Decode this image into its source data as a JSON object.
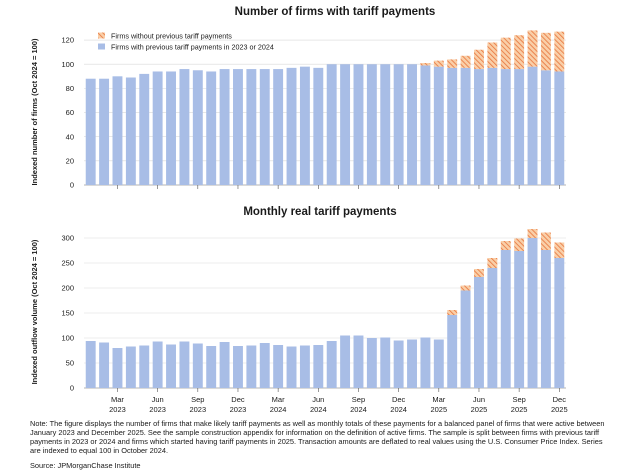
{
  "colors": {
    "existing": "#a8bde6",
    "new_fill": "#f9cfa8",
    "new_hatch": "#e8733a",
    "grid": "#d9d9d9"
  },
  "chart_data": [
    {
      "type": "bar",
      "stacked": true,
      "title": "Number of firms with tariff payments",
      "ylabel": "Indexed number of firms (Oct 2024 = 100)",
      "xlabel": "",
      "ylim": [
        0,
        130
      ],
      "yticks": [
        0,
        20,
        40,
        60,
        80,
        100,
        120
      ],
      "grid": true,
      "legend_position": "top-left",
      "categories": [
        "Jan 2023",
        "Feb 2023",
        "Mar 2023",
        "Apr 2023",
        "May 2023",
        "Jun 2023",
        "Jul 2023",
        "Aug 2023",
        "Sep 2023",
        "Oct 2023",
        "Nov 2023",
        "Dec 2023",
        "Jan 2024",
        "Feb 2024",
        "Mar 2024",
        "Apr 2024",
        "May 2024",
        "Jun 2024",
        "Jul 2024",
        "Aug 2024",
        "Sep 2024",
        "Oct 2024",
        "Nov 2024",
        "Dec 2024",
        "Jan 2025",
        "Feb 2025",
        "Mar 2025",
        "Apr 2025",
        "May 2025",
        "Jun 2025",
        "Jul 2025",
        "Aug 2025",
        "Sep 2025",
        "Oct 2025",
        "Nov 2025",
        "Dec 2025"
      ],
      "series": [
        {
          "name": "Firms with previous tariff payments in 2023 or 2024",
          "key": "existing",
          "values": [
            88,
            88,
            90,
            89,
            92,
            94,
            94,
            96,
            95,
            94,
            96,
            96,
            96,
            96,
            96,
            97,
            98,
            97,
            100,
            100,
            100,
            100,
            100,
            100,
            100,
            99,
            98,
            97,
            97,
            96,
            97,
            96,
            96,
            98,
            95,
            94
          ]
        },
        {
          "name": "Firms without previous tariff payments",
          "key": "new",
          "values": [
            0,
            0,
            0,
            0,
            0,
            0,
            0,
            0,
            0,
            0,
            0,
            0,
            0,
            0,
            0,
            0,
            0,
            0,
            0,
            0,
            0,
            0,
            0,
            0,
            0,
            2,
            5,
            7,
            10,
            16,
            21,
            26,
            28,
            30,
            31,
            33
          ]
        }
      ],
      "xticks": [
        {
          "month": "Mar",
          "year": "2023"
        },
        {
          "month": "Jun",
          "year": "2023"
        },
        {
          "month": "Sep",
          "year": "2023"
        },
        {
          "month": "Dec",
          "year": "2023"
        },
        {
          "month": "Mar",
          "year": "2024"
        },
        {
          "month": "Jun",
          "year": "2024"
        },
        {
          "month": "Sep",
          "year": "2024"
        },
        {
          "month": "Dec",
          "year": "2024"
        },
        {
          "month": "Mar",
          "year": "2025"
        },
        {
          "month": "Jun",
          "year": "2025"
        },
        {
          "month": "Sep",
          "year": "2025"
        },
        {
          "month": "Dec",
          "year": "2025"
        }
      ],
      "xtick_labels_shown": false
    },
    {
      "type": "bar",
      "stacked": true,
      "title": "Monthly real tariff payments",
      "ylabel": "Indexed outflow volume (Oct 2024 = 100)",
      "xlabel": "",
      "ylim": [
        0,
        320
      ],
      "yticks": [
        0,
        50,
        100,
        150,
        200,
        250,
        300
      ],
      "grid": true,
      "legend_position": "none",
      "categories": [
        "Jan 2023",
        "Feb 2023",
        "Mar 2023",
        "Apr 2023",
        "May 2023",
        "Jun 2023",
        "Jul 2023",
        "Aug 2023",
        "Sep 2023",
        "Oct 2023",
        "Nov 2023",
        "Dec 2023",
        "Jan 2024",
        "Feb 2024",
        "Mar 2024",
        "Apr 2024",
        "May 2024",
        "Jun 2024",
        "Jul 2024",
        "Aug 2024",
        "Sep 2024",
        "Oct 2024",
        "Nov 2024",
        "Dec 2024",
        "Jan 2025",
        "Feb 2025",
        "Mar 2025",
        "Apr 2025",
        "May 2025",
        "Jun 2025",
        "Jul 2025",
        "Aug 2025",
        "Sep 2025",
        "Oct 2025",
        "Nov 2025",
        "Dec 2025"
      ],
      "series": [
        {
          "name": "Firms with previous tariff payments in 2023 or 2024",
          "key": "existing",
          "values": [
            94,
            91,
            80,
            83,
            85,
            93,
            87,
            93,
            89,
            84,
            92,
            84,
            85,
            90,
            86,
            83,
            85,
            86,
            94,
            105,
            105,
            100,
            101,
            95,
            97,
            101,
            97,
            146,
            195,
            222,
            240,
            276,
            274,
            300,
            276,
            260
          ]
        },
        {
          "name": "Firms without previous tariff payments",
          "key": "new",
          "values": [
            0,
            0,
            0,
            0,
            0,
            0,
            0,
            0,
            0,
            0,
            0,
            0,
            0,
            0,
            0,
            0,
            0,
            0,
            0,
            0,
            0,
            0,
            0,
            0,
            0,
            0,
            0,
            10,
            10,
            16,
            20,
            18,
            25,
            18,
            35,
            31
          ]
        }
      ],
      "xticks": [
        {
          "month": "Mar",
          "year": "2023"
        },
        {
          "month": "Jun",
          "year": "2023"
        },
        {
          "month": "Sep",
          "year": "2023"
        },
        {
          "month": "Dec",
          "year": "2023"
        },
        {
          "month": "Mar",
          "year": "2024"
        },
        {
          "month": "Jun",
          "year": "2024"
        },
        {
          "month": "Sep",
          "year": "2024"
        },
        {
          "month": "Dec",
          "year": "2024"
        },
        {
          "month": "Mar",
          "year": "2025"
        },
        {
          "month": "Jun",
          "year": "2025"
        },
        {
          "month": "Sep",
          "year": "2025"
        },
        {
          "month": "Dec",
          "year": "2025"
        }
      ],
      "xtick_labels_shown": true
    }
  ],
  "legend": {
    "new_label": "Firms without previous tariff payments",
    "existing_label": "Firms with previous tariff payments in 2023 or 2024"
  },
  "note": "Note: The figure displays the number of firms that make likely tariff payments as well as monthly totals of these payments for a balanced panel of firms that were active between January 2023 and December 2025. See the sample construction appendix for information on the definition of active firms. The sample is split between firms with previous tariff payments in 2023 or 2024 and firms which started having tariff payments in 2025. Transaction amounts are deflated to real values using the U.S. Consumer Price Index. Series are indexed to equal 100 in October 2024.",
  "source": "Source: JPMorganChase Institute"
}
